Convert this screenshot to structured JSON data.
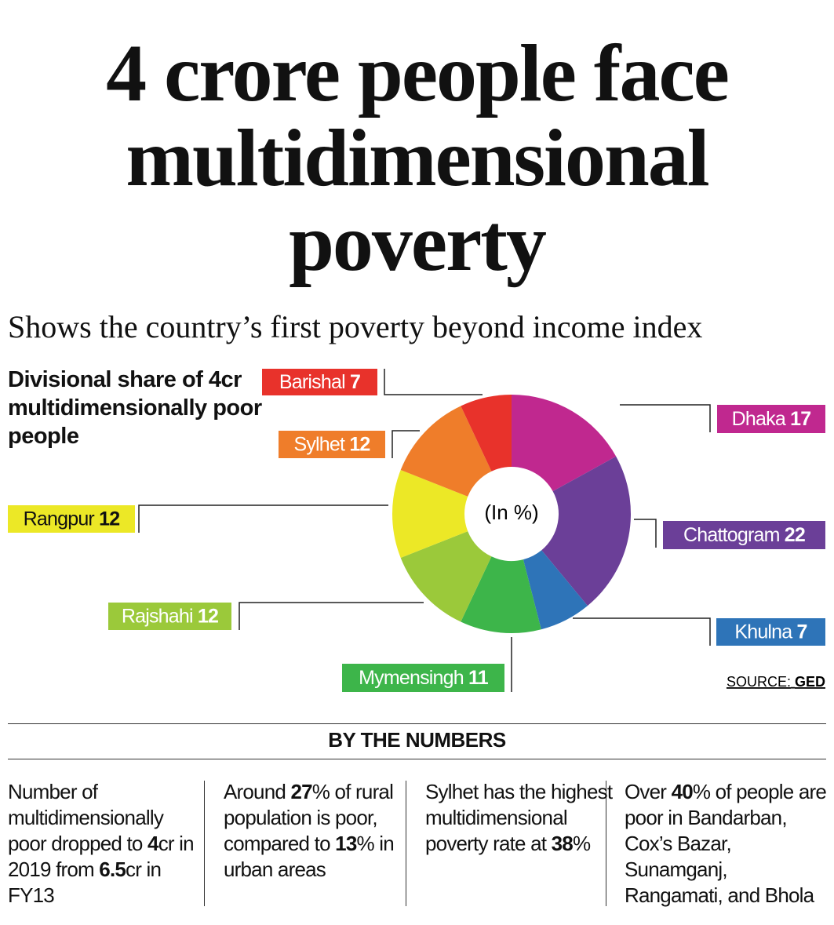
{
  "title": "4 crore people face multidimensional poverty",
  "subtitle": "Shows the country’s first poverty beyond income index",
  "chart_data": {
    "type": "donut",
    "title": "Divisional share of 4cr multidimensionally poor people",
    "center_label": "(In %)",
    "categories": [
      "Dhaka",
      "Chattogram",
      "Khulna",
      "Mymensingh",
      "Rajshahi",
      "Rangpur",
      "Sylhet",
      "Barishal"
    ],
    "values": [
      17,
      22,
      7,
      11,
      12,
      12,
      12,
      7
    ],
    "colors": [
      "#c0288f",
      "#6b3f98",
      "#2e74b8",
      "#3db54a",
      "#9bc93a",
      "#ece826",
      "#ef7d2a",
      "#e8322b"
    ],
    "source_label": "SOURCE:",
    "source": "GED"
  },
  "by_the_numbers": {
    "heading": "BY THE NUMBERS",
    "items": [
      [
        "Number of multidimensionally poor dropped to ",
        "4",
        "cr in 2019 from ",
        "6.5",
        "cr in FY13"
      ],
      [
        "Around ",
        "27",
        "% of rural population is poor, compared to ",
        "13",
        "% in urban areas"
      ],
      [
        "Sylhet has the highest multidimensional poverty rate at ",
        "38",
        "%"
      ],
      [
        "Over ",
        "40",
        "% of people are poor in Bandarban, Cox’s Bazar, Sunamganj, Rangamati, and Bhola"
      ]
    ]
  }
}
